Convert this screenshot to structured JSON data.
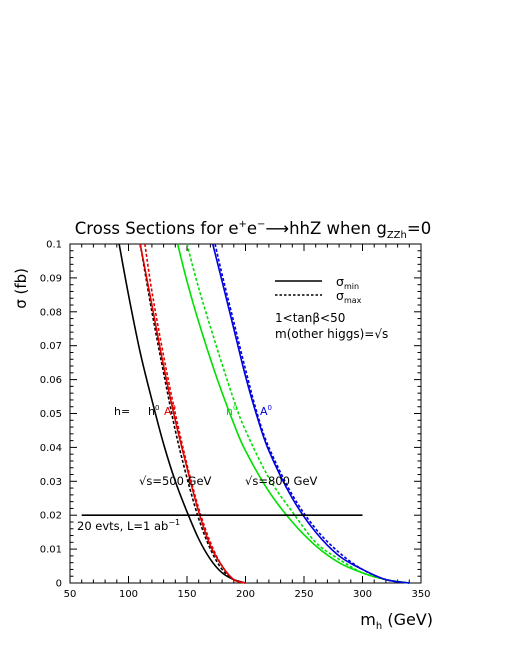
{
  "chart_data": {
    "type": "line",
    "title_main": "Cross Sections for e",
    "title_sup": "+",
    "title_e2": "e",
    "title_sup2": "−",
    "title_arrow": "⟶",
    "title_rest": "hhZ when g",
    "title_sub": "ZZh",
    "title_end": "=0",
    "xlabel_main": "m",
    "xlabel_sub": "h",
    "xlabel_unit": " (GeV)",
    "ylabel": "σ (fb)",
    "xlim": [
      50,
      350
    ],
    "ylim": [
      0,
      0.1
    ],
    "xticks": [
      "50",
      "100",
      "150",
      "200",
      "250",
      "300",
      "350"
    ],
    "yticks": [
      "0",
      "0.01",
      "0.02",
      "0.03",
      "0.04",
      "0.05",
      "0.06",
      "0.07",
      "0.08",
      "0.09",
      "0.1"
    ],
    "legend": {
      "solid_sym": "σ",
      "solid_sub": "min",
      "dotted_sym": "σ",
      "dotted_sub": "max",
      "note1_pre": "1<tan",
      "note1_beta": "β",
      "note1_post": "<50",
      "note2": "m(other higgs)=√s"
    },
    "annotations": {
      "h_eq": "h=",
      "h0": "h",
      "h0_sup": "0",
      "A0_red": "A",
      "A0_red_sup": "0",
      "h0_green": "h",
      "h0_green_sup": "0",
      "A0_blue": "A",
      "A0_blue_sup": "0",
      "sqrt500": "√s=500 GeV",
      "sqrt800": "√s=800 GeV",
      "events": "20 evts, L=1 ab",
      "events_sup": "−1"
    },
    "colors": {
      "black": "#000000",
      "red": "#e00000",
      "green": "#00e000",
      "blue": "#0000e0"
    },
    "series": [
      {
        "color": "black",
        "style": "solid",
        "x": [
          92,
          100,
          110,
          120,
          130,
          140,
          150,
          160,
          170,
          180,
          190,
          200
        ],
        "y": [
          0.1,
          0.085,
          0.068,
          0.054,
          0.041,
          0.03,
          0.021,
          0.013,
          0.007,
          0.003,
          0.001,
          0
        ]
      },
      {
        "color": "black",
        "style": "dotted",
        "x": [
          110,
          120,
          130,
          140,
          150,
          160,
          170,
          180,
          190,
          200
        ],
        "y": [
          0.1,
          0.08,
          0.062,
          0.045,
          0.031,
          0.019,
          0.01,
          0.004,
          0.001,
          0
        ]
      },
      {
        "color": "red",
        "style": "solid",
        "x": [
          110,
          120,
          130,
          140,
          150,
          160,
          170,
          180,
          190,
          200
        ],
        "y": [
          0.1,
          0.082,
          0.064,
          0.048,
          0.034,
          0.021,
          0.011,
          0.005,
          0.001,
          0
        ]
      },
      {
        "color": "red",
        "style": "dotted",
        "x": [
          114,
          120,
          130,
          140,
          150,
          160,
          170,
          180,
          190,
          200
        ],
        "y": [
          0.1,
          0.086,
          0.067,
          0.05,
          0.035,
          0.022,
          0.012,
          0.005,
          0.001,
          0
        ]
      },
      {
        "color": "green",
        "style": "solid",
        "x": [
          142,
          150,
          160,
          175,
          190,
          200,
          220,
          240,
          260,
          280,
          300,
          320,
          340
        ],
        "y": [
          0.1,
          0.089,
          0.077,
          0.061,
          0.047,
          0.039,
          0.027,
          0.018,
          0.011,
          0.006,
          0.003,
          0.001,
          0
        ]
      },
      {
        "color": "green",
        "style": "dotted",
        "x": [
          150,
          160,
          175,
          190,
          200,
          220,
          240,
          260,
          280,
          300,
          320,
          340
        ],
        "y": [
          0.1,
          0.087,
          0.07,
          0.054,
          0.045,
          0.031,
          0.021,
          0.012,
          0.007,
          0.003,
          0.001,
          0
        ]
      },
      {
        "color": "blue",
        "style": "solid",
        "x": [
          172,
          180,
          190,
          200,
          210,
          220,
          240,
          260,
          280,
          300,
          320,
          340
        ],
        "y": [
          0.1,
          0.089,
          0.075,
          0.061,
          0.049,
          0.039,
          0.025,
          0.015,
          0.008,
          0.004,
          0.001,
          0
        ]
      },
      {
        "color": "blue",
        "style": "dotted",
        "x": [
          174,
          180,
          190,
          200,
          210,
          220,
          240,
          260,
          280,
          300,
          320,
          340
        ],
        "y": [
          0.1,
          0.091,
          0.077,
          0.063,
          0.05,
          0.04,
          0.026,
          0.016,
          0.009,
          0.004,
          0.001,
          0
        ]
      },
      {
        "color": "black",
        "style": "solid",
        "x": [
          60,
          300
        ],
        "y": [
          0.02,
          0.02
        ]
      }
    ]
  }
}
